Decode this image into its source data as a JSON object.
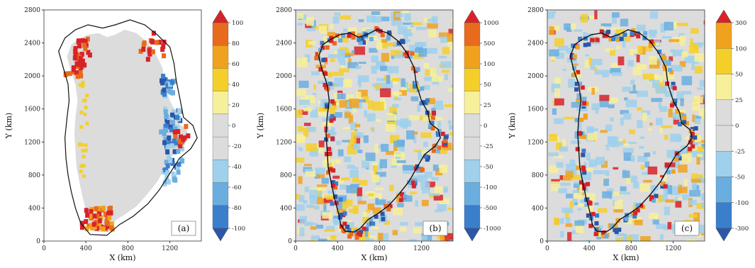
{
  "chart_data": [
    {
      "type": "heatmap",
      "panel_label": "(a)",
      "xlabel": "X (km)",
      "ylabel": "Y (km)",
      "xlim": [
        0,
        1500
      ],
      "ylim": [
        0,
        2800
      ],
      "xticks": [
        "0",
        "400",
        "800",
        "1200"
      ],
      "yticks": [
        "0",
        "400",
        "800",
        "1200",
        "1600",
        "2000",
        "2400",
        "2800"
      ],
      "colorbar": [
        "-100",
        "-80",
        "-60",
        "-40",
        "-20",
        "0",
        "20",
        "40",
        "60",
        "80",
        "100"
      ],
      "colors": [
        "#2c56a8",
        "#3a7fcc",
        "#6aaee0",
        "#9fd0ec",
        "#dcdcdc",
        "#dcdcdc",
        "#f7f09a",
        "#f4cf2a",
        "#f0a21e",
        "#e86a1c",
        "#d8222a"
      ]
    },
    {
      "type": "heatmap",
      "panel_label": "(b)",
      "xlabel": "X (km)",
      "ylabel": "Y (km)",
      "xlim": [
        0,
        1500
      ],
      "ylim": [
        0,
        2800
      ],
      "xticks": [
        "0",
        "400",
        "800",
        "1200"
      ],
      "yticks": [
        "0",
        "400",
        "800",
        "1200",
        "1600",
        "2000",
        "2400",
        "2800"
      ],
      "colorbar": [
        "-1000",
        "-500",
        "-100",
        "-50",
        "-25",
        "0",
        "25",
        "50",
        "100",
        "500",
        "1000"
      ],
      "colors": [
        "#2c56a8",
        "#3a7fcc",
        "#6aaee0",
        "#9fd0ec",
        "#dcdcdc",
        "#dcdcdc",
        "#f7f09a",
        "#f4cf2a",
        "#f0a21e",
        "#e86a1c",
        "#d8222a"
      ]
    },
    {
      "type": "heatmap",
      "panel_label": "(c)",
      "xlabel": "X (km)",
      "ylabel": "Y (km)",
      "xlim": [
        0,
        1500
      ],
      "ylim": [
        0,
        2800
      ],
      "xticks": [
        "0",
        "400",
        "800",
        "1200"
      ],
      "yticks": [
        "0",
        "400",
        "800",
        "1200",
        "1600",
        "2000",
        "2400",
        "2800"
      ],
      "colorbar": [
        "-300",
        "-100",
        "-50",
        "-25",
        "0",
        "25",
        "50",
        "100",
        "300"
      ],
      "colors": [
        "#2c56a8",
        "#3a7fcc",
        "#6aaee0",
        "#9fd0ec",
        "#dcdcdc",
        "#dcdcdc",
        "#f7f09a",
        "#f4cf2a",
        "#f0a21e",
        "#d8222a"
      ]
    }
  ]
}
